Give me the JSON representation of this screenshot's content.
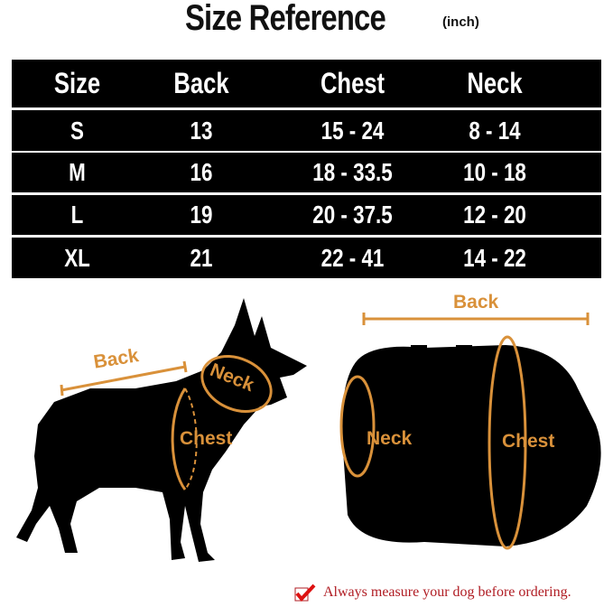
{
  "title": "Size Reference",
  "unit": "(inch)",
  "table": {
    "headers": [
      "Size",
      "Back",
      "Chest",
      "Neck"
    ],
    "rows": [
      [
        "S",
        "13",
        "15 - 24",
        "8 - 14"
      ],
      [
        "M",
        "16",
        "18 - 33.5",
        "10 - 18"
      ],
      [
        "L",
        "19",
        "20 - 37.5",
        "12 - 20"
      ],
      [
        "XL",
        "21",
        "22 - 41",
        "14 - 22"
      ]
    ]
  },
  "dog_labels": {
    "back": "Back",
    "neck": "Neck",
    "chest": "Chest"
  },
  "harness_labels": {
    "back": "Back",
    "neck": "Neck",
    "chest": "Chest"
  },
  "note": "Always measure your dog before ordering.",
  "note_icon": "checkbox-checked-icon",
  "colors": {
    "accent": "#d9913a",
    "note": "#b01c23",
    "table_bg": "#000000"
  }
}
